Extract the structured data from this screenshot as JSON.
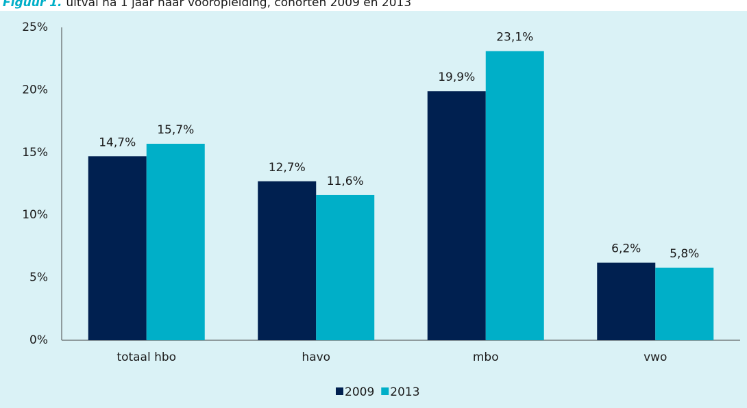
{
  "chart_data": {
    "type": "bar",
    "title_label": "Figuur 1.",
    "title": "uitval na 1 jaar naar vooropleiding, cohorten 2009 en 2013",
    "categories": [
      "totaal hbo",
      "havo",
      "mbo",
      "vwo"
    ],
    "series": [
      {
        "name": "2009",
        "color": "#002050",
        "values": [
          14.7,
          12.7,
          19.9,
          6.2
        ],
        "value_labels": [
          "14,7%",
          "12,7%",
          "19,9%",
          "6,2%"
        ]
      },
      {
        "name": "2013",
        "color": "#00afc8",
        "values": [
          15.7,
          11.6,
          23.1,
          5.8
        ],
        "value_labels": [
          "15,7%",
          "11,6%",
          "23,1%",
          "5,8%"
        ]
      }
    ],
    "ylim": [
      0,
      25
    ],
    "yticks": [
      {
        "value": 0,
        "label": "0%"
      },
      {
        "value": 5,
        "label": "5%"
      },
      {
        "value": 10,
        "label": "10%"
      },
      {
        "value": 15,
        "label": "15%"
      },
      {
        "value": 20,
        "label": "20%"
      },
      {
        "value": 25,
        "label": "25%"
      }
    ],
    "grid": false,
    "legend": "bottom"
  }
}
